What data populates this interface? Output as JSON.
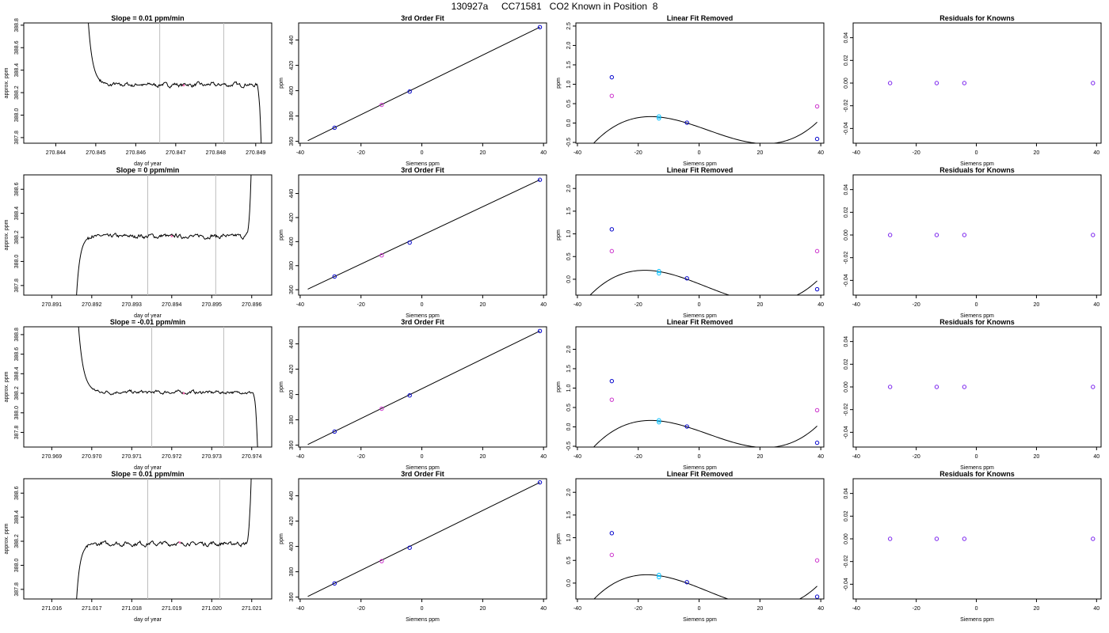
{
  "page_title": "130927a     CC71581   CO2 Known in Position  8",
  "colors": {
    "axis": "#000000",
    "line": "#000000",
    "vline": "#bdbdbd",
    "marker": "#ff69b4",
    "known": "#0000cc",
    "cyan": "#00bfff",
    "magenta": "#cc33cc",
    "residual": "#7a22ee"
  },
  "chart_data": [
    {
      "type": "line",
      "title": "Slope =  0.01  ppm/min",
      "xlabel": "day of year",
      "ylabel": "approx. ppm",
      "xlim": [
        270.8432,
        270.8494
      ],
      "ylim": [
        387.75,
        388.82
      ],
      "xticks": [
        "270.844",
        "270.845",
        "270.846",
        "270.847",
        "270.848",
        "270.849"
      ],
      "yticks": [
        "387.8",
        "388.0",
        "388.2",
        "388.4",
        "388.6",
        "388.8"
      ],
      "vlines": [
        270.8466,
        270.8482
      ],
      "marker": {
        "x": 270.8472,
        "y": 388.265
      },
      "trace": {
        "start": 270.8448,
        "end": 270.84915,
        "settle": 270.8453,
        "plateau": 388.27,
        "start_value": 388.9,
        "end_value": 387.6,
        "end_mode": "drop"
      }
    },
    {
      "type": "line",
      "title": "3rd Order Fit",
      "xlabel": "Siemens ppm",
      "ylabel": "ppm",
      "xlim": [
        -40.5,
        41
      ],
      "ylim": [
        358.5,
        453.5
      ],
      "xticks": [
        "-40",
        "-20",
        "0",
        "20",
        "40"
      ],
      "yticks": [
        "360",
        "380",
        "400",
        "420",
        "440"
      ],
      "fit": {
        "from": [
          -37.5,
          360.5
        ],
        "to": [
          38.8,
          450.2
        ]
      },
      "points": [
        {
          "x": -28.7,
          "y": 370.7,
          "kind": "known"
        },
        {
          "x": -13.2,
          "y": 388.8,
          "kind": "magenta"
        },
        {
          "x": -4,
          "y": 399.3,
          "kind": "known"
        },
        {
          "x": 38.8,
          "y": 450.2,
          "kind": "known"
        }
      ]
    },
    {
      "type": "line",
      "title": "Linear Fit Removed",
      "xlabel": "Siemens ppm",
      "ylabel": "ppm",
      "xlim": [
        -40.5,
        41
      ],
      "ylim": [
        -0.52,
        2.58
      ],
      "xticks": [
        "-40",
        "-20",
        "0",
        "20",
        "40"
      ],
      "yticks": [
        "-0.5",
        "0.0",
        "0.5",
        "1.0",
        "1.5",
        "2.0",
        "2.5"
      ],
      "curve": {
        "a": 0.0,
        "b": -0.024,
        "c": -0.00054,
        "d": 2.6e-05,
        "x0": -4,
        "xmin": -37.5,
        "xmax": 38.8
      },
      "points": [
        {
          "x": -28.7,
          "y": 1.18,
          "kind": "known"
        },
        {
          "x": -28.7,
          "y": 0.7,
          "kind": "magenta"
        },
        {
          "x": -13.2,
          "y": 0.17,
          "kind": "cyan"
        },
        {
          "x": -13.2,
          "y": 0.12,
          "kind": "cyan"
        },
        {
          "x": -4,
          "y": 0.01,
          "kind": "known"
        },
        {
          "x": 38.8,
          "y": -0.41,
          "kind": "known"
        },
        {
          "x": 38.8,
          "y": 0.43,
          "kind": "magenta"
        }
      ]
    },
    {
      "type": "scatter",
      "title": "Residuals for Knowns",
      "xlabel": "Siemens ppm",
      "ylabel": "",
      "xlim": [
        -41,
        41.5
      ],
      "ylim": [
        -0.053,
        0.053
      ],
      "xticks": [
        "-40",
        "-20",
        "0",
        "20",
        "40"
      ],
      "yticks": [
        "-0.04",
        "-0.02",
        "0.00",
        "0.02",
        "0.04"
      ],
      "points": [
        {
          "x": -28.7,
          "y": 0,
          "kind": "residual"
        },
        {
          "x": -13.2,
          "y": 0,
          "kind": "residual"
        },
        {
          "x": -4,
          "y": 0,
          "kind": "residual"
        },
        {
          "x": 38.8,
          "y": 0,
          "kind": "residual"
        }
      ]
    },
    {
      "type": "line",
      "title": "Slope =  0  ppm/min",
      "xlabel": "day of year",
      "ylabel": "approx. ppm",
      "xlim": [
        270.8903,
        270.8965
      ],
      "ylim": [
        387.72,
        388.72
      ],
      "xticks": [
        "270.891",
        "270.892",
        "270.893",
        "270.894",
        "270.895",
        "270.896"
      ],
      "yticks": [
        "387.8",
        "388.0",
        "388.2",
        "388.4",
        "388.6"
      ],
      "vlines": [
        270.8934,
        270.8951
      ],
      "marker": {
        "x": 270.894,
        "y": 388.21
      },
      "trace": {
        "start": 270.8916,
        "end": 270.896,
        "settle": 270.892,
        "plateau": 388.21,
        "start_value": 387.6,
        "end_value": 388.9,
        "end_mode": "rise"
      }
    },
    {
      "type": "line",
      "title": "3rd Order Fit",
      "xlabel": "Siemens ppm",
      "ylabel": "ppm",
      "xlim": [
        -40.5,
        41
      ],
      "ylim": [
        355.5,
        455.5
      ],
      "xticks": [
        "-40",
        "-20",
        "0",
        "20",
        "40"
      ],
      "yticks": [
        "360",
        "380",
        "400",
        "420",
        "440"
      ],
      "fit": {
        "from": [
          -37.5,
          360.5
        ],
        "to": [
          38.8,
          451.4
        ]
      },
      "points": [
        {
          "x": -28.7,
          "y": 371.0,
          "kind": "known"
        },
        {
          "x": -13.2,
          "y": 388.6,
          "kind": "magenta"
        },
        {
          "x": -4,
          "y": 399.2,
          "kind": "known"
        },
        {
          "x": 38.8,
          "y": 451.4,
          "kind": "known"
        }
      ]
    },
    {
      "type": "line",
      "title": "Linear Fit Removed",
      "xlabel": "Siemens ppm",
      "ylabel": "ppm",
      "xlim": [
        -40.5,
        41
      ],
      "ylim": [
        -0.35,
        2.3
      ],
      "xticks": [
        "-40",
        "-20",
        "0",
        "20",
        "40"
      ],
      "yticks": [
        "0.0",
        "0.5",
        "1.0",
        "1.5",
        "2.0"
      ],
      "curve": {
        "a": 0.0,
        "b": -0.024,
        "c": -0.0004,
        "d": 2.2e-05,
        "x0": -4,
        "xmin": -37.5,
        "xmax": 38.8
      },
      "points": [
        {
          "x": -28.7,
          "y": 1.1,
          "kind": "known"
        },
        {
          "x": -28.7,
          "y": 0.62,
          "kind": "magenta"
        },
        {
          "x": -13.2,
          "y": 0.18,
          "kind": "cyan"
        },
        {
          "x": -13.2,
          "y": 0.13,
          "kind": "cyan"
        },
        {
          "x": -4,
          "y": 0.02,
          "kind": "known"
        },
        {
          "x": 38.8,
          "y": -0.22,
          "kind": "known"
        },
        {
          "x": 38.8,
          "y": 0.62,
          "kind": "magenta"
        }
      ]
    },
    {
      "type": "scatter",
      "title": "Residuals for Knowns",
      "xlabel": "Siemens ppm",
      "ylabel": "",
      "xlim": [
        -41,
        41.5
      ],
      "ylim": [
        -0.053,
        0.053
      ],
      "xticks": [
        "-40",
        "-20",
        "0",
        "20",
        "40"
      ],
      "yticks": [
        "-0.04",
        "-0.02",
        "0.00",
        "0.02",
        "0.04"
      ],
      "points": [
        {
          "x": -28.7,
          "y": 0,
          "kind": "residual"
        },
        {
          "x": -13.2,
          "y": 0,
          "kind": "residual"
        },
        {
          "x": -4,
          "y": 0,
          "kind": "residual"
        },
        {
          "x": 38.8,
          "y": 0,
          "kind": "residual"
        }
      ]
    },
    {
      "type": "line",
      "title": "Slope =  -0.01  ppm/min",
      "xlabel": "day of year",
      "ylabel": "approx. ppm",
      "xlim": [
        270.9683,
        270.9745
      ],
      "ylim": [
        387.65,
        388.88
      ],
      "xticks": [
        "270.969",
        "270.970",
        "270.971",
        "270.972",
        "270.973",
        "270.974"
      ],
      "yticks": [
        "387.8",
        "388.0",
        "388.2",
        "388.4",
        "388.6",
        "388.8"
      ],
      "vlines": [
        270.9715,
        270.9733
      ],
      "marker": {
        "x": 270.9723,
        "y": 388.2
      },
      "trace": {
        "start": 270.96965,
        "end": 270.97415,
        "settle": 270.9702,
        "plateau": 388.21,
        "start_value": 389.0,
        "end_value": 387.6,
        "end_mode": "drop"
      }
    },
    {
      "type": "line",
      "title": "3rd Order Fit",
      "xlabel": "Siemens ppm",
      "ylabel": "ppm",
      "xlim": [
        -40.5,
        41
      ],
      "ylim": [
        358.5,
        453.5
      ],
      "xticks": [
        "-40",
        "-20",
        "0",
        "20",
        "40"
      ],
      "yticks": [
        "360",
        "380",
        "400",
        "420",
        "440"
      ],
      "fit": {
        "from": [
          -37.5,
          360.5
        ],
        "to": [
          38.8,
          450.2
        ]
      },
      "points": [
        {
          "x": -28.7,
          "y": 370.7,
          "kind": "known"
        },
        {
          "x": -13.2,
          "y": 388.8,
          "kind": "magenta"
        },
        {
          "x": -4,
          "y": 399.3,
          "kind": "known"
        },
        {
          "x": 38.8,
          "y": 450.2,
          "kind": "known"
        }
      ]
    },
    {
      "type": "line",
      "title": "Linear Fit Removed",
      "xlabel": "Siemens ppm",
      "ylabel": "ppm",
      "xlim": [
        -40.5,
        41
      ],
      "ylim": [
        -0.52,
        2.58
      ],
      "xticks": [
        "-40",
        "-20",
        "0",
        "20",
        "40"
      ],
      "yticks": [
        "-0.5",
        "0.0",
        "0.5",
        "1.0",
        "1.5",
        "2.0"
      ],
      "curve": {
        "a": 0.0,
        "b": -0.024,
        "c": -0.00054,
        "d": 2.6e-05,
        "x0": -4,
        "xmin": -37.5,
        "xmax": 38.8
      },
      "points": [
        {
          "x": -28.7,
          "y": 1.18,
          "kind": "known"
        },
        {
          "x": -28.7,
          "y": 0.7,
          "kind": "magenta"
        },
        {
          "x": -13.2,
          "y": 0.17,
          "kind": "cyan"
        },
        {
          "x": -13.2,
          "y": 0.12,
          "kind": "cyan"
        },
        {
          "x": -4,
          "y": 0.01,
          "kind": "known"
        },
        {
          "x": 38.8,
          "y": -0.41,
          "kind": "known"
        },
        {
          "x": 38.8,
          "y": 0.43,
          "kind": "magenta"
        }
      ]
    },
    {
      "type": "scatter",
      "title": "Residuals for Knowns",
      "xlabel": "Siemens ppm",
      "ylabel": "",
      "xlim": [
        -41,
        41.5
      ],
      "ylim": [
        -0.053,
        0.053
      ],
      "xticks": [
        "-40",
        "-20",
        "0",
        "20",
        "40"
      ],
      "yticks": [
        "-0.04",
        "-0.02",
        "0.00",
        "0.02",
        "0.04"
      ],
      "points": [
        {
          "x": -28.7,
          "y": 0,
          "kind": "residual"
        },
        {
          "x": -13.2,
          "y": 0,
          "kind": "residual"
        },
        {
          "x": -4,
          "y": 0,
          "kind": "residual"
        },
        {
          "x": 38.8,
          "y": 0,
          "kind": "residual"
        }
      ]
    },
    {
      "type": "line",
      "title": "Slope =  0.01  ppm/min",
      "xlabel": "day of year",
      "ylabel": "approx. ppm",
      "xlim": [
        271.0153,
        271.0215
      ],
      "ylim": [
        387.72,
        388.72
      ],
      "xticks": [
        "271.016",
        "271.017",
        "271.018",
        "271.019",
        "271.020",
        "271.021"
      ],
      "yticks": [
        "387.8",
        "388.0",
        "388.2",
        "388.4",
        "388.6"
      ],
      "vlines": [
        271.0184,
        271.0202
      ],
      "marker": {
        "x": 271.0192,
        "y": 388.19
      },
      "trace": {
        "start": 271.0166,
        "end": 271.021,
        "settle": 271.017,
        "plateau": 388.18,
        "start_value": 387.6,
        "end_value": 388.9,
        "end_mode": "rise"
      }
    },
    {
      "type": "line",
      "title": "3rd Order Fit",
      "xlabel": "Siemens ppm",
      "ylabel": "ppm",
      "xlim": [
        -40.5,
        41
      ],
      "ylim": [
        358.5,
        453.5
      ],
      "xticks": [
        "-40",
        "-20",
        "0",
        "20",
        "40"
      ],
      "yticks": [
        "360",
        "380",
        "400",
        "420",
        "440"
      ],
      "fit": {
        "from": [
          -37.5,
          360.5
        ],
        "to": [
          38.8,
          450.6
        ]
      },
      "points": [
        {
          "x": -28.7,
          "y": 370.8,
          "kind": "known"
        },
        {
          "x": -13.2,
          "y": 388.4,
          "kind": "magenta"
        },
        {
          "x": -4,
          "y": 399.0,
          "kind": "known"
        },
        {
          "x": 38.8,
          "y": 450.6,
          "kind": "known"
        }
      ]
    },
    {
      "type": "line",
      "title": "Linear Fit Removed",
      "xlabel": "Siemens ppm",
      "ylabel": "ppm",
      "xlim": [
        -40.5,
        41
      ],
      "ylim": [
        -0.35,
        2.3
      ],
      "xticks": [
        "-40",
        "-20",
        "0",
        "20",
        "40"
      ],
      "yticks": [
        "0.0",
        "0.5",
        "1.0",
        "1.5",
        "2.0"
      ],
      "curve": {
        "a": 0.0,
        "b": -0.024,
        "c": -0.00046,
        "d": 2.3e-05,
        "x0": -4,
        "xmin": -37.5,
        "xmax": 38.8
      },
      "points": [
        {
          "x": -28.7,
          "y": 1.1,
          "kind": "known"
        },
        {
          "x": -28.7,
          "y": 0.62,
          "kind": "magenta"
        },
        {
          "x": -13.2,
          "y": 0.18,
          "kind": "cyan"
        },
        {
          "x": -13.2,
          "y": 0.13,
          "kind": "cyan"
        },
        {
          "x": -4,
          "y": 0.02,
          "kind": "known"
        },
        {
          "x": 38.8,
          "y": -0.3,
          "kind": "known"
        },
        {
          "x": 38.8,
          "y": 0.5,
          "kind": "magenta"
        }
      ]
    },
    {
      "type": "scatter",
      "title": "Residuals for Knowns",
      "xlabel": "Siemens ppm",
      "ylabel": "",
      "xlim": [
        -41,
        41.5
      ],
      "ylim": [
        -0.053,
        0.053
      ],
      "xticks": [
        "-40",
        "-20",
        "0",
        "20",
        "40"
      ],
      "yticks": [
        "-0.04",
        "-0.02",
        "0.00",
        "0.02",
        "0.04"
      ],
      "points": [
        {
          "x": -28.7,
          "y": 0,
          "kind": "residual"
        },
        {
          "x": -13.2,
          "y": 0,
          "kind": "residual"
        },
        {
          "x": -4,
          "y": 0,
          "kind": "residual"
        },
        {
          "x": 38.8,
          "y": 0,
          "kind": "residual"
        }
      ]
    }
  ]
}
